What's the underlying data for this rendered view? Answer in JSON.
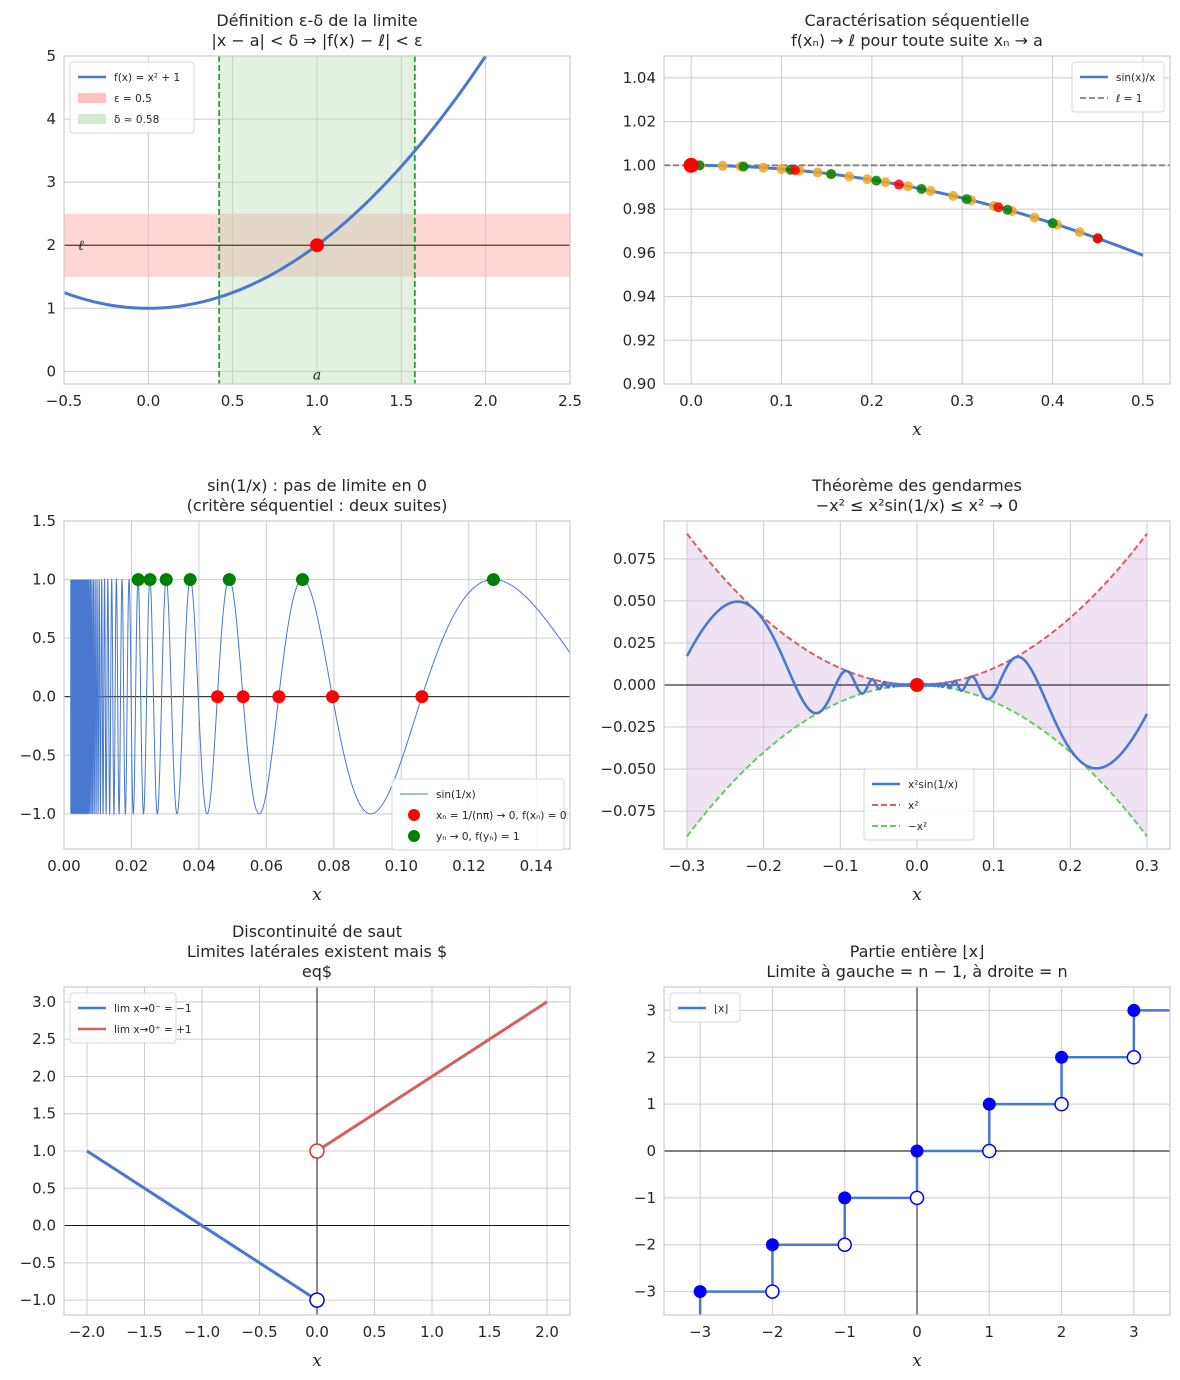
{
  "figure": {
    "colors": {
      "blue": "#4878d0",
      "red": "#d65f5f",
      "green": "#6acc64",
      "pink": "#ffb3b3",
      "lightgreen": "#b9dcb5",
      "purple": "#dcc0e4",
      "point_red": "#ff0000",
      "point_green": "#008000",
      "point_orange": "#f5a623",
      "point_blue": "#0000ff",
      "grid": "#cccccc",
      "gray": "#808080"
    }
  },
  "chart_data": [
    {
      "type": "line",
      "title": [
        "Définition ε-δ de la limite",
        "|x − a| < δ ⇒ |f(x) − ℓ| < ε"
      ],
      "xlabel": "x",
      "ylabel": "",
      "xlim": [
        -0.5,
        2.5
      ],
      "ylim": [
        -0.2,
        5
      ],
      "xticks": [
        -0.5,
        0.0,
        0.5,
        1.0,
        1.5,
        2.0,
        2.5
      ],
      "yticks": [
        0,
        1,
        2,
        3,
        4,
        5
      ],
      "grid": true,
      "legend_position": "upper-left",
      "series": [
        {
          "name": "f(x) = x² + 1",
          "function": "x^2+1",
          "x_range": [
            -0.5,
            2.0
          ]
        }
      ],
      "bands": [
        {
          "name": "ε = 0.5",
          "axis": "y",
          "from": 1.5,
          "to": 2.5
        },
        {
          "name": "δ ≈ 0.58",
          "axis": "x",
          "from": 0.42,
          "to": 1.58
        }
      ],
      "hlines": [
        2
      ],
      "point": {
        "x": 1,
        "y": 2
      },
      "annotations": [
        {
          "text": "ℓ",
          "x": -0.4,
          "y": 2
        },
        {
          "text": "a",
          "x": 1,
          "y": -0.05
        }
      ]
    },
    {
      "type": "line",
      "title": [
        "Caractérisation séquentielle",
        "f(xₙ) → ℓ pour toute suite xₙ → a"
      ],
      "xlabel": "x",
      "ylabel": "",
      "xlim": [
        -0.03,
        0.53
      ],
      "ylim": [
        0.9,
        1.05
      ],
      "xticks": [
        0.0,
        0.1,
        0.2,
        0.3,
        0.4,
        0.5
      ],
      "yticks": [
        0.9,
        0.92,
        0.94,
        0.96,
        0.98,
        1.0,
        1.02,
        1.04
      ],
      "grid": true,
      "legend_position": "upper-right",
      "series": [
        {
          "name": "sin(x)/x",
          "function": "sin(x)/x",
          "x_range": [
            0.0,
            0.5
          ]
        },
        {
          "name": "ℓ = 1",
          "constant": 1
        }
      ],
      "sequences": [
        {
          "color": "orange",
          "x": [
            0.01,
            0.035,
            0.055,
            0.08,
            0.1,
            0.12,
            0.14,
            0.155,
            0.175,
            0.195,
            0.215,
            0.24,
            0.265,
            0.29,
            0.31,
            0.335,
            0.355,
            0.38,
            0.405,
            0.43,
            0.45
          ]
        },
        {
          "color": "green",
          "x": [
            0.009,
            0.058,
            0.11,
            0.155,
            0.205,
            0.255,
            0.305,
            0.35,
            0.4,
            0.45
          ]
        },
        {
          "color": "red",
          "x": [
            0.115,
            0.23,
            0.34,
            0.45
          ]
        }
      ],
      "point": {
        "x": 0,
        "y": 1
      }
    },
    {
      "type": "line",
      "title": [
        "sin(1/x) : pas de limite en 0",
        "(critère séquentiel : deux suites)"
      ],
      "xlabel": "x",
      "ylabel": "",
      "xlim": [
        0,
        0.15
      ],
      "ylim": [
        -1.3,
        1.5
      ],
      "xticks": [
        0.0,
        0.02,
        0.04,
        0.06,
        0.08,
        0.1,
        0.12,
        0.14
      ],
      "yticks": [
        -1.0,
        -0.5,
        0.0,
        0.5,
        1.0,
        1.5
      ],
      "grid": true,
      "legend_position": "lower-right",
      "series": [
        {
          "name": "sin(1/x)",
          "function": "sin(1/x)",
          "x_range": [
            0.002,
            0.15
          ]
        },
        {
          "name": "xₙ = 1/(nπ) → 0, f(xₙ) = 0",
          "x": [
            0.1061,
            0.0796,
            0.0637,
            0.0531,
            0.0455
          ],
          "y": [
            0,
            0,
            0,
            0,
            0
          ]
        },
        {
          "name": "yₙ → 0, f(yₙ) = 1",
          "x": [
            0.1273,
            0.0707,
            0.049,
            0.0374,
            0.0303,
            0.0255,
            0.022
          ],
          "y": [
            1,
            1,
            1,
            1,
            1,
            1,
            1
          ]
        }
      ],
      "hlines": [
        0
      ]
    },
    {
      "type": "line",
      "title": [
        "Théorème des gendarmes",
        "−x² ≤ x²sin(1/x) ≤ x² → 0"
      ],
      "xlabel": "x",
      "ylabel": "",
      "xlim": [
        -0.33,
        0.33
      ],
      "ylim": [
        -0.0975,
        0.0975
      ],
      "xticks": [
        -0.3,
        -0.2,
        -0.1,
        0.0,
        0.1,
        0.2,
        0.3
      ],
      "yticks": [
        -0.075,
        -0.05,
        -0.025,
        0.0,
        0.025,
        0.05,
        0.075
      ],
      "grid": true,
      "legend_position": "lower-center",
      "series": [
        {
          "name": "x²sin(1/x)",
          "function": "x^2*sin(1/x)",
          "x_range": [
            -0.3,
            0.3
          ]
        },
        {
          "name": "x²",
          "function": "x^2",
          "x_range": [
            -0.3,
            0.3
          ]
        },
        {
          "name": "−x²",
          "function": "-x^2",
          "x_range": [
            -0.3,
            0.3
          ]
        }
      ],
      "hlines": [
        0
      ],
      "point": {
        "x": 0,
        "y": 0
      }
    },
    {
      "type": "line",
      "title": [
        "Discontinuité de saut",
        "Limites latérales existent mais $",
        "eq$"
      ],
      "xlabel": "x",
      "ylabel": "",
      "xlim": [
        -2.2,
        2.2
      ],
      "ylim": [
        -1.2,
        3.2
      ],
      "xticks": [
        -2.0,
        -1.5,
        -1.0,
        -0.5,
        0.0,
        0.5,
        1.0,
        1.5,
        2.0
      ],
      "yticks": [
        -1.0,
        -0.5,
        0.0,
        0.5,
        1.0,
        1.5,
        2.0,
        2.5,
        3.0
      ],
      "grid": true,
      "legend_position": "upper-left",
      "series": [
        {
          "name": "lim x→0⁻ = −1",
          "x": [
            -2,
            0
          ],
          "y": [
            1,
            -1
          ]
        },
        {
          "name": "lim x→0⁺ = +1",
          "x": [
            0,
            2
          ],
          "y": [
            1,
            3
          ]
        }
      ],
      "open_points": [
        {
          "x": 0,
          "y": -1,
          "series": 0
        },
        {
          "x": 0,
          "y": 1,
          "series": 1
        }
      ],
      "hlines": [
        0
      ],
      "vlines": [
        0
      ]
    },
    {
      "type": "line",
      "title": [
        "Partie entière ⌊x⌋",
        "Limite à gauche = n − 1, à droite = n"
      ],
      "xlabel": "x",
      "ylabel": "",
      "xlim": [
        -3.5,
        3.5
      ],
      "ylim": [
        -3.5,
        3.5
      ],
      "xticks": [
        -3,
        -2,
        -1,
        0,
        1,
        2,
        3
      ],
      "yticks": [
        -3,
        -2,
        -1,
        0,
        1,
        2,
        3
      ],
      "grid": true,
      "legend_position": "upper-left",
      "series": [
        {
          "name": "⌊x⌋",
          "function": "floor(x)",
          "x_range": [
            -3,
            3.5
          ]
        }
      ],
      "closed_points": [
        {
          "x": -3,
          "y": -3
        },
        {
          "x": -2,
          "y": -2
        },
        {
          "x": -1,
          "y": -1
        },
        {
          "x": 0,
          "y": 0
        },
        {
          "x": 1,
          "y": 1
        },
        {
          "x": 2,
          "y": 2
        },
        {
          "x": 3,
          "y": 3
        }
      ],
      "open_points": [
        {
          "x": -2,
          "y": -3
        },
        {
          "x": -1,
          "y": -2
        },
        {
          "x": 0,
          "y": -1
        },
        {
          "x": 1,
          "y": 0
        },
        {
          "x": 2,
          "y": 1
        },
        {
          "x": 3,
          "y": 2
        }
      ],
      "hlines": [
        0
      ],
      "vlines": [
        0
      ]
    }
  ]
}
